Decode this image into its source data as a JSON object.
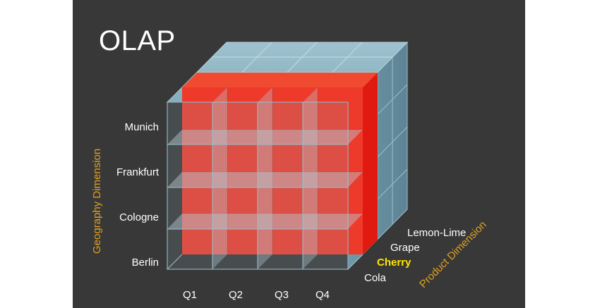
{
  "title": "OLAP",
  "geography": {
    "axis_label": "Geography Dimension",
    "members": [
      "Munich",
      "Frankfurt",
      "Cologne",
      "Berlin"
    ]
  },
  "time": {
    "members": [
      "Q1",
      "Q2",
      "Q3",
      "Q4"
    ]
  },
  "product": {
    "axis_label": "Product Dimension",
    "members": [
      "Lemon-Lime",
      "Grape",
      "Cherry",
      "Cola"
    ],
    "highlighted": "Cherry"
  },
  "colors": {
    "background": "#383838",
    "slice": "#ee3a2a",
    "cube_face": "#7fa6b6",
    "highlight_text": "#ffe600",
    "axis_text": "#e0a020"
  }
}
